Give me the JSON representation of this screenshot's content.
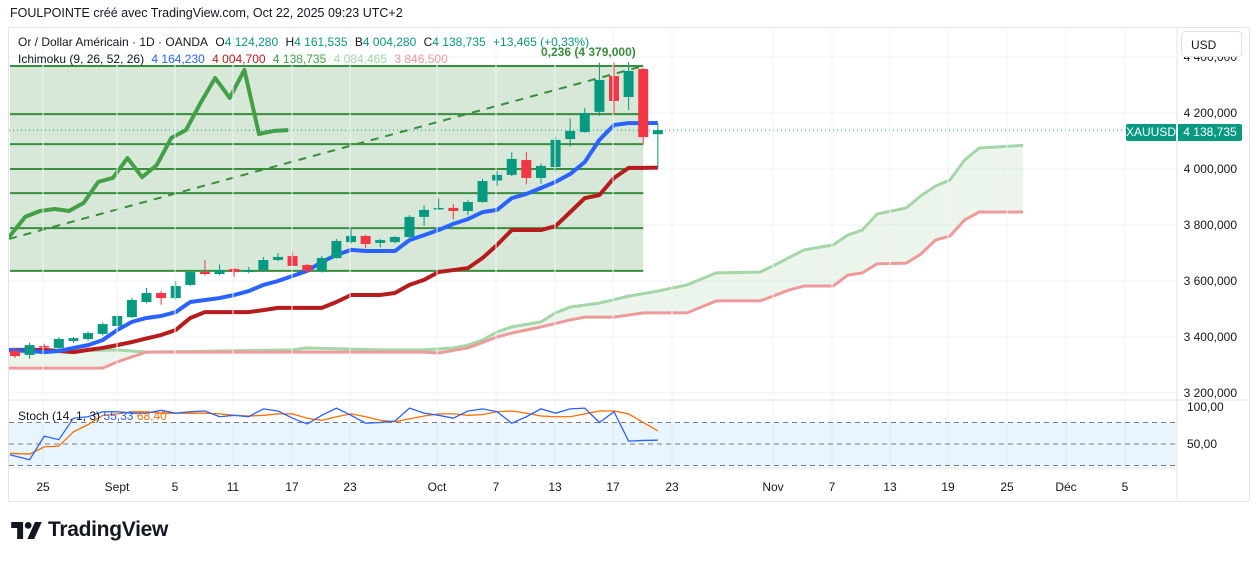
{
  "caption": "FOULPOINTE créé avec TradingView.com, Oct 22, 2025 09:23 UTC+2",
  "legend": {
    "symbol": "Or / Dollar Américain · 1D · OANDA",
    "o_label": "O",
    "o_value": "4 124,280",
    "h_label": "H",
    "h_value": "4 161,535",
    "l_label": "B",
    "l_value": "4 004,280",
    "c_label": "C",
    "c_value": "4 138,735",
    "change": "+13,465 (+0,33%)",
    "ichimoku_label": "Ichimoku (9, 26, 52, 26)",
    "ichimoku_values": [
      "4 164,230",
      "4 004,700",
      "4 138,735",
      "4 084,465",
      "3 846,500"
    ],
    "stoch_label": "Stoch (14, 1, 3)",
    "stoch_k": "55,33",
    "stoch_d": "68,40"
  },
  "fib_label": "0,236 (4 379,000)",
  "currency_button": "USD",
  "price_tag": {
    "symbol": "XAUUSD",
    "value": "4 138,735"
  },
  "logo_text": "TradingView",
  "colors": {
    "up": "#089981",
    "down": "#f23645",
    "tenkan": "#2962ff",
    "kijun": "#b71c1c",
    "span_a": "#a5d6a7",
    "span_b": "#ef9a9a",
    "chikou": "#43a047",
    "fib": "#388e3c",
    "stoch_k": "#2962ff",
    "stoch_d": "#ff6d00"
  },
  "chart_data": {
    "type": "candlestick",
    "symbol": "XAUUSD",
    "price_axis": {
      "ticks": [
        4400,
        4200,
        4000,
        3800,
        3600,
        3400,
        3200
      ],
      "labels": [
        "4 400,000",
        "4 200,000",
        "4 000,000",
        "3 800,000",
        "3 600,000",
        "3 400,000",
        "3 200,000"
      ]
    },
    "stoch_axis": {
      "ticks": [
        100,
        50
      ],
      "labels": [
        "100,00",
        "50,00"
      ],
      "bands": [
        80,
        50,
        20
      ]
    },
    "time_axis_labels": [
      "25",
      "Sept",
      "5",
      "11",
      "17",
      "23",
      "Oct",
      "7",
      "13",
      "17",
      "23",
      "Nov",
      "7",
      "13",
      "19",
      "25",
      "Déc",
      "5"
    ],
    "candles": [
      {
        "date": "Aug 21",
        "o": 3350,
        "h": 3361,
        "l": 3325,
        "c": 3332
      },
      {
        "date": "Aug 22",
        "o": 3336,
        "h": 3380,
        "l": 3322,
        "c": 3371
      },
      {
        "date": "Aug 25",
        "o": 3368,
        "h": 3376,
        "l": 3354,
        "c": 3364
      },
      {
        "date": "Aug 26",
        "o": 3361,
        "h": 3400,
        "l": 3355,
        "c": 3393
      },
      {
        "date": "Aug 27",
        "o": 3386,
        "h": 3400,
        "l": 3378,
        "c": 3396
      },
      {
        "date": "Aug 28",
        "o": 3393,
        "h": 3420,
        "l": 3386,
        "c": 3414
      },
      {
        "date": "Aug 29",
        "o": 3411,
        "h": 3452,
        "l": 3405,
        "c": 3446
      },
      {
        "date": "Sep 1",
        "o": 3439,
        "h": 3480,
        "l": 3435,
        "c": 3475
      },
      {
        "date": "Sep 2",
        "o": 3471,
        "h": 3540,
        "l": 3468,
        "c": 3532
      },
      {
        "date": "Sep 3",
        "o": 3525,
        "h": 3575,
        "l": 3520,
        "c": 3557
      },
      {
        "date": "Sep 4",
        "o": 3557,
        "h": 3565,
        "l": 3515,
        "c": 3539
      },
      {
        "date": "Sep 5",
        "o": 3539,
        "h": 3600,
        "l": 3535,
        "c": 3582
      },
      {
        "date": "Sep 8",
        "o": 3586,
        "h": 3640,
        "l": 3582,
        "c": 3632
      },
      {
        "date": "Sep 9",
        "o": 3632,
        "h": 3675,
        "l": 3620,
        "c": 3625
      },
      {
        "date": "Sep 10",
        "o": 3625,
        "h": 3660,
        "l": 3620,
        "c": 3639
      },
      {
        "date": "Sep 11",
        "o": 3643,
        "h": 3645,
        "l": 3615,
        "c": 3632
      },
      {
        "date": "Sep 12",
        "o": 3632,
        "h": 3650,
        "l": 3628,
        "c": 3639
      },
      {
        "date": "Sep 15",
        "o": 3639,
        "h": 3685,
        "l": 3635,
        "c": 3675
      },
      {
        "date": "Sep 16",
        "o": 3675,
        "h": 3700,
        "l": 3670,
        "c": 3686
      },
      {
        "date": "Sep 17",
        "o": 3689,
        "h": 3705,
        "l": 3660,
        "c": 3654
      },
      {
        "date": "Sep 18",
        "o": 3657,
        "h": 3662,
        "l": 3630,
        "c": 3636
      },
      {
        "date": "Sep 19",
        "o": 3636,
        "h": 3690,
        "l": 3630,
        "c": 3682
      },
      {
        "date": "Sep 22",
        "o": 3682,
        "h": 3750,
        "l": 3680,
        "c": 3743
      },
      {
        "date": "Sep 23",
        "o": 3739,
        "h": 3790,
        "l": 3735,
        "c": 3761
      },
      {
        "date": "Sep 24",
        "o": 3761,
        "h": 3765,
        "l": 3717,
        "c": 3732
      },
      {
        "date": "Sep 25",
        "o": 3736,
        "h": 3750,
        "l": 3720,
        "c": 3746
      },
      {
        "date": "Sep 26",
        "o": 3739,
        "h": 3760,
        "l": 3735,
        "c": 3757
      },
      {
        "date": "Sep 29",
        "o": 3757,
        "h": 3835,
        "l": 3754,
        "c": 3829
      },
      {
        "date": "Sep 30",
        "o": 3829,
        "h": 3870,
        "l": 3797,
        "c": 3854
      },
      {
        "date": "Oct 1",
        "o": 3858,
        "h": 3895,
        "l": 3855,
        "c": 3861
      },
      {
        "date": "Oct 2",
        "o": 3861,
        "h": 3875,
        "l": 3820,
        "c": 3850
      },
      {
        "date": "Oct 3",
        "o": 3850,
        "h": 3890,
        "l": 3835,
        "c": 3882
      },
      {
        "date": "Oct 6",
        "o": 3882,
        "h": 3965,
        "l": 3880,
        "c": 3957
      },
      {
        "date": "Oct 7",
        "o": 3959,
        "h": 3992,
        "l": 3940,
        "c": 3979
      },
      {
        "date": "Oct 8",
        "o": 3979,
        "h": 4060,
        "l": 3975,
        "c": 4036
      },
      {
        "date": "Oct 9",
        "o": 4032,
        "h": 4060,
        "l": 3945,
        "c": 3968
      },
      {
        "date": "Oct 10",
        "o": 3968,
        "h": 4020,
        "l": 3947,
        "c": 4011
      },
      {
        "date": "Oct 13",
        "o": 4007,
        "h": 4115,
        "l": 3990,
        "c": 4104
      },
      {
        "date": "Oct 14",
        "o": 4107,
        "h": 4180,
        "l": 4080,
        "c": 4136
      },
      {
        "date": "Oct 15",
        "o": 4132,
        "h": 4218,
        "l": 4130,
        "c": 4200
      },
      {
        "date": "Oct 16",
        "o": 4204,
        "h": 4380,
        "l": 4190,
        "c": 4318
      },
      {
        "date": "Oct 17",
        "o": 4332,
        "h": 4380,
        "l": 4195,
        "c": 4243
      },
      {
        "date": "Oct 20",
        "o": 4257,
        "h": 4382,
        "l": 4210,
        "c": 4350
      },
      {
        "date": "Oct 21",
        "o": 4357,
        "h": 4360,
        "l": 4090,
        "c": 4114
      },
      {
        "date": "Oct 22",
        "o": 4124.28,
        "h": 4161.535,
        "l": 4004.28,
        "c": 4138.735
      }
    ],
    "ichimoku": {
      "tenkan": [
        3354,
        3350,
        3346,
        3350,
        3361,
        3371,
        3389,
        3425,
        3454,
        3468,
        3475,
        3489,
        3525,
        3532,
        3539,
        3550,
        3564,
        3586,
        3600,
        3618,
        3636,
        3668,
        3693,
        3711,
        3707,
        3707,
        3707,
        3746,
        3764,
        3782,
        3804,
        3821,
        3846,
        3854,
        3896,
        3911,
        3932,
        3954,
        3982,
        4025,
        4104,
        4157,
        4164,
        4164,
        4164.23
      ],
      "kijun": [
        3354,
        3354,
        3354,
        3350,
        3346,
        3354,
        3361,
        3371,
        3382,
        3395,
        3407,
        3425,
        3468,
        3489,
        3489,
        3489,
        3489,
        3496,
        3504,
        3504,
        3504,
        3504,
        3525,
        3550,
        3550,
        3550,
        3557,
        3586,
        3604,
        3632,
        3639,
        3646,
        3682,
        3729,
        3782,
        3782,
        3782,
        3796,
        3846,
        3896,
        3907,
        3968,
        4004,
        4004,
        4004.7
      ],
      "span_a_points": [
        [
          0,
          3346
        ],
        [
          7,
          3354
        ],
        [
          9,
          3346
        ],
        [
          19,
          3354
        ],
        [
          20,
          3361
        ],
        [
          25,
          3354
        ],
        [
          28,
          3354
        ],
        [
          30,
          3361
        ],
        [
          31,
          3371
        ],
        [
          32,
          3389
        ],
        [
          33,
          3418
        ],
        [
          34,
          3436
        ],
        [
          36,
          3454
        ],
        [
          37,
          3486
        ],
        [
          38,
          3507
        ],
        [
          40,
          3521
        ],
        [
          42,
          3546
        ],
        [
          44,
          3564
        ],
        [
          46,
          3586
        ],
        [
          48,
          3629
        ],
        [
          51,
          3632
        ],
        [
          52,
          3657
        ],
        [
          54,
          3711
        ],
        [
          56,
          3729
        ],
        [
          57,
          3764
        ],
        [
          58,
          3782
        ],
        [
          59,
          3839
        ],
        [
          61,
          3861
        ],
        [
          62,
          3904
        ],
        [
          63,
          3939
        ],
        [
          64,
          3961
        ],
        [
          65,
          4032
        ],
        [
          66,
          4075
        ],
        [
          69,
          4084.465
        ]
      ],
      "span_b_points": [
        [
          0,
          3289
        ],
        [
          6,
          3289
        ],
        [
          7,
          3311
        ],
        [
          8,
          3329
        ],
        [
          9,
          3346
        ],
        [
          28,
          3346
        ],
        [
          29,
          3343
        ],
        [
          31,
          3361
        ],
        [
          33,
          3400
        ],
        [
          34,
          3414
        ],
        [
          36,
          3436
        ],
        [
          38,
          3461
        ],
        [
          39,
          3471
        ],
        [
          41,
          3471
        ],
        [
          43,
          3486
        ],
        [
          46,
          3486
        ],
        [
          48,
          3529
        ],
        [
          51,
          3529
        ],
        [
          53,
          3568
        ],
        [
          54,
          3582
        ],
        [
          56,
          3582
        ],
        [
          57,
          3621
        ],
        [
          58,
          3629
        ],
        [
          59,
          3661
        ],
        [
          61,
          3664
        ],
        [
          62,
          3696
        ],
        [
          63,
          3746
        ],
        [
          64,
          3761
        ],
        [
          65,
          3818
        ],
        [
          66,
          3846.5
        ],
        [
          69,
          3846.5
        ]
      ],
      "chikou": [
        3757,
        3829,
        3850,
        3857,
        3850,
        3879,
        3954,
        3968,
        4039,
        3971,
        4014,
        4111,
        4139,
        4236,
        4325,
        4254,
        4354,
        4125,
        4136,
        4138.735
      ]
    },
    "fib_retracement": {
      "levels": [
        4368,
        4196,
        4089,
        4000,
        3914,
        3789,
        3636
      ],
      "from_date": "Aug 21",
      "to_date": "Oct 21"
    },
    "trend_line": {
      "start": {
        "date": "Aug 21",
        "price": 3761
      },
      "end": {
        "date": "Oct 21",
        "price": 4368
      }
    },
    "stochastic": {
      "k": [
        35,
        28,
        61,
        56,
        86,
        88,
        95,
        95,
        93,
        93,
        97,
        93,
        95,
        96,
        88,
        90,
        88,
        99,
        96,
        86,
        78,
        90,
        100,
        90,
        79,
        80,
        82,
        100,
        93,
        90,
        86,
        96,
        99,
        95,
        79,
        88,
        99,
        93,
        99,
        100,
        80,
        95,
        54,
        55,
        55.33
      ],
      "d": [
        37,
        36,
        46,
        47,
        67,
        77,
        90,
        92,
        95,
        95,
        93,
        93,
        93,
        93,
        92,
        90,
        89,
        90,
        92,
        92,
        86,
        83,
        88,
        92,
        88,
        83,
        81,
        85,
        89,
        92,
        92,
        90,
        91,
        95,
        96,
        93,
        89,
        88,
        88,
        92,
        96,
        96,
        92,
        80,
        68.4
      ]
    }
  }
}
